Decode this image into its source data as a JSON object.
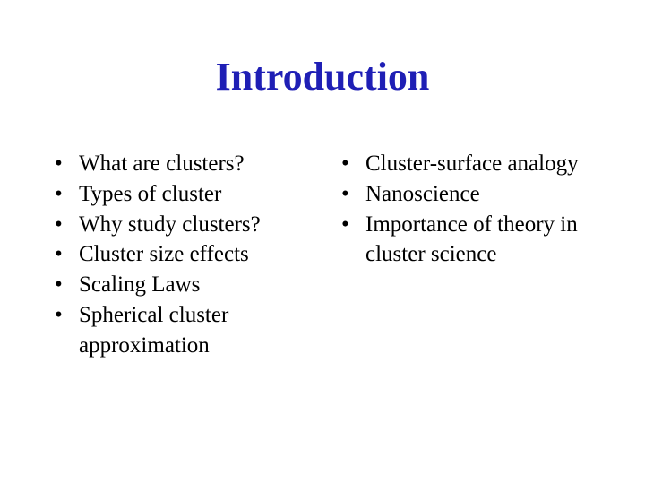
{
  "slide": {
    "title": "Introduction",
    "title_color": "#1f1fb5",
    "title_fontsize": 44,
    "body_fontsize": 25,
    "body_color": "#000000",
    "background_color": "#ffffff",
    "left_items": [
      "What are clusters?",
      "Types of cluster",
      "Why study clusters?",
      "Cluster size effects",
      "Scaling Laws",
      "Spherical cluster approximation"
    ],
    "right_items": [
      "Cluster-surface analogy",
      "Nanoscience",
      "Importance of theory in cluster science"
    ]
  }
}
